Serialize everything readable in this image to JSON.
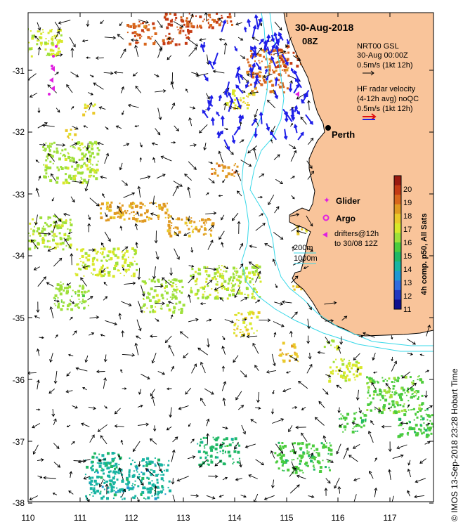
{
  "map": {
    "date_label": "30-Aug-2018",
    "time_label": "08Z",
    "city": "Perth",
    "x_ticks": [
      "110",
      "111",
      "112",
      "113",
      "114",
      "115",
      "116",
      "117"
    ],
    "y_ticks": [
      "-31",
      "-32",
      "-33",
      "-34",
      "-35",
      "-36",
      "-37",
      "-38"
    ],
    "credit": "© IMOS 13-Sep-2018 23:28 Hobart Time"
  },
  "legend": {
    "gsl_title": "NRT00 GSL",
    "gsl_date": "30-Aug 00:00Z",
    "gsl_scale": "0.5m/s (1kt 12h)",
    "radar_title": "HF radar velocity",
    "radar_avg": "(4-12h avg) noQC",
    "radar_scale": "0.5m/s (1kt 12h)",
    "glider": "Glider",
    "argo": "Argo",
    "drifters_1": "drifters@12h",
    "drifters_2": "to 30/08 12Z",
    "contour_200": "200m",
    "contour_1000": "1000m"
  },
  "colorbar": {
    "title": "4h comp. p50, All Sats",
    "ticks": [
      "20",
      "19",
      "18",
      "17",
      "16",
      "15",
      "14",
      "13",
      "12",
      "11"
    ]
  },
  "colors": {
    "land": "#f9c49a",
    "coast": "#000000",
    "isobath": "#38d8e8",
    "radar_arrow": "#1e1ee8",
    "drifter": "#e020e0",
    "scale_red": "#e01010"
  }
}
